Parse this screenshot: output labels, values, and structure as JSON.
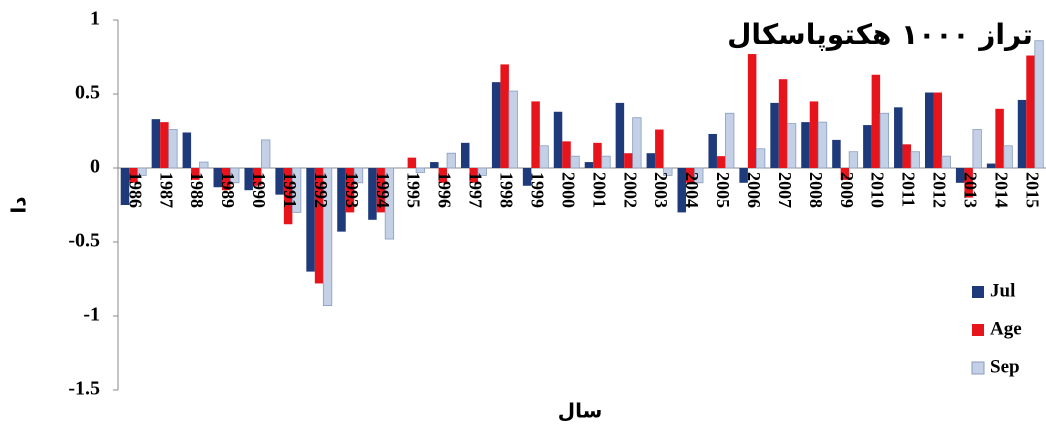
{
  "chart_data": {
    "type": "bar",
    "title": "تراز ۱۰۰۰ هکتوپاسکال",
    "x_label": "سال",
    "y_label": "دا",
    "categories": [
      "1986",
      "1987",
      "1988",
      "1989",
      "1990",
      "1991",
      "1992",
      "1993",
      "1994",
      "1995",
      "1996",
      "1997",
      "1998",
      "1999",
      "2000",
      "2001",
      "2002",
      "2003",
      "2004",
      "2005",
      "2006",
      "2007",
      "2008",
      "2009",
      "2010",
      "2011",
      "2012",
      "2013",
      "2014",
      "2015"
    ],
    "series": [
      {
        "name": "Jul",
        "color": "#1f3a7a",
        "values": [
          -0.25,
          0.33,
          0.24,
          -0.13,
          -0.15,
          -0.18,
          -0.7,
          -0.43,
          -0.35,
          0,
          0.04,
          0.17,
          0.58,
          -0.12,
          0.38,
          0.04,
          0.44,
          0.1,
          -0.3,
          0.23,
          -0.1,
          0.44,
          0.31,
          0.19,
          0.29,
          0.41,
          0.51,
          -0.1,
          0.03,
          0.46
        ]
      },
      {
        "name": "Age",
        "color": "#e8141b",
        "values": [
          -0.1,
          0.31,
          -0.08,
          -0.15,
          -0.12,
          -0.38,
          -0.78,
          -0.3,
          -0.3,
          0.07,
          -0.1,
          -0.1,
          0.7,
          0.45,
          0.18,
          0.17,
          0.1,
          0.26,
          -0.1,
          0.08,
          0.77,
          0.6,
          0.45,
          -0.08,
          0.63,
          0.16,
          0.51,
          -0.2,
          0.4,
          0.76
        ]
      },
      {
        "name": "Sep",
        "color": "#c3d0e6",
        "values": [
          -0.05,
          0.26,
          0.04,
          -0.1,
          0.19,
          -0.3,
          -0.93,
          -0.1,
          -0.48,
          -0.03,
          0.1,
          -0.05,
          0.52,
          0.15,
          0.08,
          0.08,
          0.34,
          -0.05,
          -0.1,
          0.37,
          0.13,
          0.3,
          0.31,
          0.11,
          0.37,
          0.11,
          0.08,
          0.26,
          0.15,
          0.86
        ]
      }
    ],
    "ylim": [
      -1.5,
      1
    ],
    "yticks": [
      -1.5,
      -1,
      -0.5,
      0,
      0.5,
      1
    ]
  }
}
